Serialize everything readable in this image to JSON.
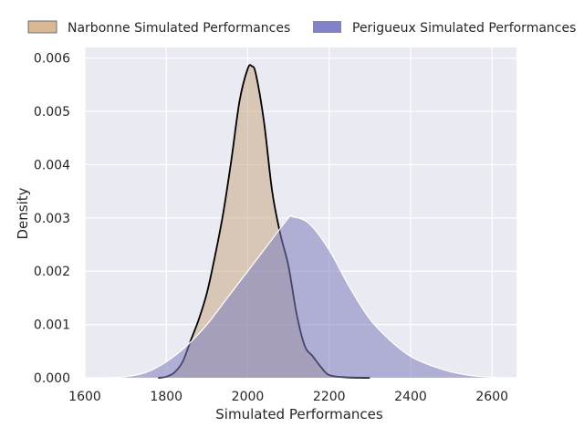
{
  "chart_data": {
    "type": "area",
    "title": "",
    "xlabel": "Simulated Performances",
    "ylabel": "Density",
    "xlim": [
      1600,
      2660
    ],
    "ylim": [
      0,
      0.0062
    ],
    "xticks": [
      "1600",
      "1800",
      "2000",
      "2200",
      "2400",
      "2600"
    ],
    "yticks": [
      "0.000",
      "0.001",
      "0.002",
      "0.003",
      "0.004",
      "0.005",
      "0.006"
    ],
    "grid": true,
    "legend_position": "top",
    "series": [
      {
        "name": "Narbonne Simulated Performances",
        "fill_color": "#c9a987",
        "line_color": "#000000",
        "points": [
          [
            1780,
            0
          ],
          [
            1800,
            2e-05
          ],
          [
            1820,
            0.0001
          ],
          [
            1840,
            0.0003
          ],
          [
            1860,
            0.0007
          ],
          [
            1880,
            0.0011
          ],
          [
            1900,
            0.0016
          ],
          [
            1920,
            0.0023
          ],
          [
            1940,
            0.0031
          ],
          [
            1960,
            0.0041
          ],
          [
            1980,
            0.0052
          ],
          [
            2000,
            0.0058
          ],
          [
            2010,
            0.00585
          ],
          [
            2020,
            0.0057
          ],
          [
            2040,
            0.0048
          ],
          [
            2060,
            0.0035
          ],
          [
            2080,
            0.0027
          ],
          [
            2100,
            0.0021
          ],
          [
            2120,
            0.0012
          ],
          [
            2140,
            0.0006
          ],
          [
            2160,
            0.0004
          ],
          [
            2180,
            0.0002
          ],
          [
            2200,
            5e-05
          ],
          [
            2240,
            1e-05
          ],
          [
            2300,
            0
          ]
        ]
      },
      {
        "name": "Perigueux Simulated Performances",
        "fill_color": "#7e7ec0",
        "line_color": "#ffffff",
        "points": [
          [
            1650,
            0
          ],
          [
            1700,
            2e-05
          ],
          [
            1750,
            0.0001
          ],
          [
            1800,
            0.0003
          ],
          [
            1850,
            0.0006
          ],
          [
            1900,
            0.001
          ],
          [
            1950,
            0.0015
          ],
          [
            2000,
            0.002
          ],
          [
            2050,
            0.0025
          ],
          [
            2100,
            0.003
          ],
          [
            2110,
            0.00302
          ],
          [
            2150,
            0.0029
          ],
          [
            2200,
            0.0024
          ],
          [
            2250,
            0.0017
          ],
          [
            2300,
            0.0011
          ],
          [
            2350,
            0.0007
          ],
          [
            2400,
            0.0004
          ],
          [
            2450,
            0.00023
          ],
          [
            2500,
            0.00011
          ],
          [
            2550,
            4e-05
          ],
          [
            2600,
            1e-05
          ],
          [
            2620,
            0
          ]
        ]
      }
    ]
  }
}
